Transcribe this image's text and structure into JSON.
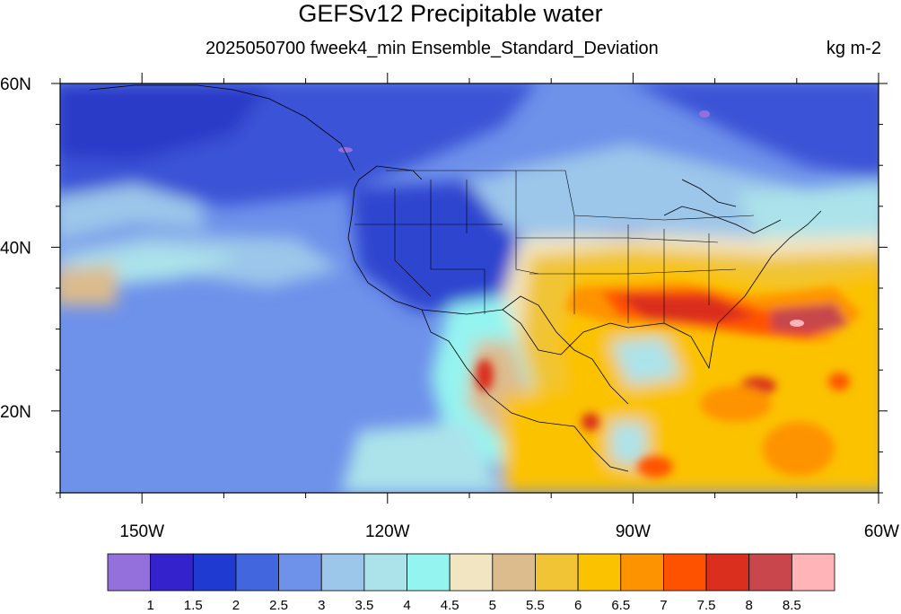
{
  "header": {
    "title": "GEFSv12 Precipitable water",
    "subtitle": "2025050700 fweek4_min Ensemble_Standard_Deviation",
    "units": "kg m-2"
  },
  "map": {
    "lon_range": [
      -160,
      -60
    ],
    "lat_range": [
      10,
      60
    ],
    "lat_labels": [
      {
        "lat": 60,
        "text": "60N"
      },
      {
        "lat": 40,
        "text": "40N"
      },
      {
        "lat": 20,
        "text": "20N"
      }
    ],
    "lon_labels": [
      {
        "lon": -150,
        "text": "150W"
      },
      {
        "lon": -120,
        "text": "120W"
      },
      {
        "lon": -90,
        "text": "90W"
      },
      {
        "lon": -60,
        "text": "60W"
      }
    ],
    "colorbar": {
      "labels": [
        "1",
        "1.5",
        "2",
        "2.5",
        "3",
        "3.5",
        "4",
        "4.5",
        "5",
        "5.5",
        "6",
        "6.5",
        "7",
        "7.5",
        "8",
        "8.5"
      ],
      "colors": [
        "#9370db",
        "#3423cc",
        "#1e3ad0",
        "#4266dd",
        "#6e91ea",
        "#9cc6ea",
        "#ace3ea",
        "#94f4f0",
        "#f2e5c2",
        "#dcbb8c",
        "#f0c434",
        "#fbc200",
        "#fe9300",
        "#fe5200",
        "#da2e1e",
        "#c8464c",
        "#ffb4b7"
      ]
    }
  }
}
